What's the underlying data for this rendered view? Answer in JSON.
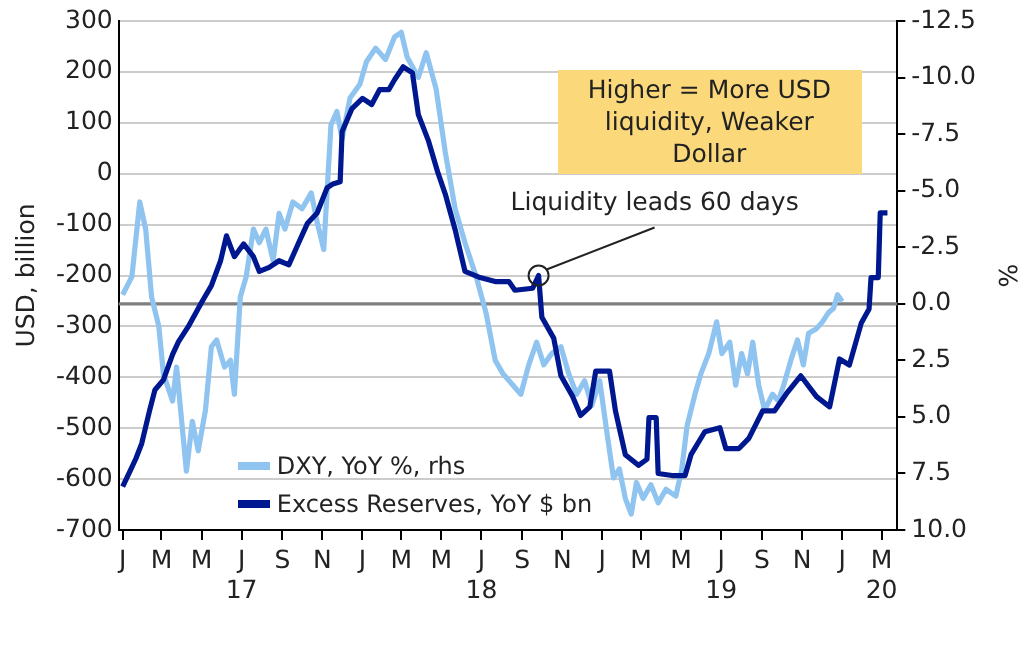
{
  "chart_data": {
    "type": "line",
    "ylabel": "USD, billion",
    "y2label": "%",
    "xlim": [
      "2016-12-26",
      "2020-03-25"
    ],
    "xticks": [
      {
        "value": "2017-01",
        "label": "J"
      },
      {
        "value": "2017-03",
        "label": "M"
      },
      {
        "value": "2017-05",
        "label": "M"
      },
      {
        "value": "2017-07",
        "label": "J\n17"
      },
      {
        "value": "2017-09",
        "label": "S"
      },
      {
        "value": "2017-11",
        "label": "N"
      },
      {
        "value": "2018-01",
        "label": "J"
      },
      {
        "value": "2018-03",
        "label": "M"
      },
      {
        "value": "2018-05",
        "label": "M"
      },
      {
        "value": "2018-07",
        "label": "J\n18"
      },
      {
        "value": "2018-09",
        "label": "S"
      },
      {
        "value": "2018-11",
        "label": "N"
      },
      {
        "value": "2019-01",
        "label": "J"
      },
      {
        "value": "2019-03",
        "label": "M"
      },
      {
        "value": "2019-05",
        "label": "M"
      },
      {
        "value": "2019-07",
        "label": "J\n19"
      },
      {
        "value": "2019-09",
        "label": "S"
      },
      {
        "value": "2019-11",
        "label": "N"
      },
      {
        "value": "2020-01",
        "label": "J"
      },
      {
        "value": "2020-03",
        "label": "M\n20"
      }
    ],
    "ylim": [
      -700,
      300
    ],
    "yticks": [
      -700,
      -600,
      -500,
      -400,
      -300,
      -200,
      -100,
      0,
      100,
      200,
      300
    ],
    "y2lim": [
      10,
      -12.5
    ],
    "y2ticks": [
      {
        "value": 10,
        "label": "10.0"
      },
      {
        "value": 7.5,
        "label": "7.5"
      },
      {
        "value": 5,
        "label": "5.0"
      },
      {
        "value": 2.5,
        "label": "2.5"
      },
      {
        "value": 0,
        "label": "0.0"
      },
      {
        "value": -2.5,
        "label": "-2.5"
      },
      {
        "value": -5,
        "label": "-5.0"
      },
      {
        "value": -7.5,
        "label": "-7.5"
      },
      {
        "value": -10,
        "label": "-10.0"
      },
      {
        "value": -12.5,
        "label": "-12.5"
      }
    ],
    "grid": "y",
    "legend": "bottom left",
    "ref_lines": [
      {
        "axis": "y2",
        "value": 0,
        "color": "#7f7f7f"
      }
    ],
    "annotations": [
      "Higher = More USD liquidity, Weaker Dollar",
      {
        "text": "Liquidity leads 60 days",
        "x": "2018-09-26",
        "y": -200
      }
    ],
    "series": [
      {
        "name": "DXY, YoY %, rhs",
        "color": "#8fc3f0",
        "axis": "y2",
        "x": [
          "2017-01-01",
          "2017-01-15",
          "2017-01-27",
          "2017-02-05",
          "2017-02-14",
          "2017-02-25",
          "2017-03-04",
          "2017-03-18",
          "2017-03-24",
          "2017-04-08",
          "2017-04-17",
          "2017-04-26",
          "2017-05-07",
          "2017-05-16",
          "2017-05-24",
          "2017-06-05",
          "2017-06-14",
          "2017-06-20",
          "2017-06-29",
          "2017-07-08",
          "2017-07-19",
          "2017-07-28",
          "2017-08-07",
          "2017-08-18",
          "2017-08-27",
          "2017-09-05",
          "2017-09-17",
          "2017-10-01",
          "2017-10-15",
          "2017-10-24",
          "2017-11-03",
          "2017-11-14",
          "2017-11-23",
          "2017-12-01",
          "2017-12-13",
          "2017-12-28",
          "2018-01-07",
          "2018-01-21",
          "2018-02-05",
          "2018-02-19",
          "2018-03-01",
          "2018-03-10",
          "2018-03-27",
          "2018-04-08",
          "2018-04-23",
          "2018-05-07",
          "2018-05-22",
          "2018-06-06",
          "2018-06-23",
          "2018-07-08",
          "2018-07-22",
          "2018-08-03",
          "2018-08-18",
          "2018-08-30",
          "2018-09-11",
          "2018-09-23",
          "2018-10-04",
          "2018-10-16",
          "2018-10-30",
          "2018-11-11",
          "2018-11-23",
          "2018-12-05",
          "2018-12-16",
          "2018-12-28",
          "2019-01-09",
          "2019-01-18",
          "2019-01-27",
          "2019-02-05",
          "2019-02-14",
          "2019-02-22",
          "2019-03-04",
          "2019-03-16",
          "2019-03-27",
          "2019-04-08",
          "2019-04-23",
          "2019-05-02",
          "2019-05-10",
          "2019-05-22",
          "2019-05-31",
          "2019-06-12",
          "2019-06-24",
          "2019-07-02",
          "2019-07-14",
          "2019-07-23",
          "2019-08-01",
          "2019-08-10",
          "2019-08-18",
          "2019-08-27",
          "2019-09-05",
          "2019-09-17",
          "2019-09-26",
          "2019-10-04",
          "2019-10-16",
          "2019-10-25",
          "2019-11-03",
          "2019-11-11",
          "2019-11-23",
          "2019-12-02",
          "2019-12-11",
          "2019-12-19",
          "2019-12-25",
          "2020-01-01"
        ],
        "values": [
          -0.4,
          -1.2,
          -4.5,
          -3.3,
          -0.3,
          1.0,
          3.1,
          4.3,
          2.8,
          7.4,
          5.2,
          6.5,
          4.7,
          1.9,
          1.6,
          2.8,
          2.5,
          4.0,
          -0.3,
          -1.2,
          -3.3,
          -2.7,
          -3.3,
          -1.9,
          -4.0,
          -3.3,
          -4.5,
          -4.2,
          -4.9,
          -3.6,
          -2.4,
          -7.9,
          -8.5,
          -7.3,
          -9.1,
          -9.7,
          -10.7,
          -11.3,
          -10.8,
          -11.8,
          -12.0,
          -10.9,
          -10.0,
          -11.1,
          -9.5,
          -6.7,
          -4.2,
          -2.7,
          -1.2,
          0.4,
          2.5,
          3.1,
          3.6,
          4.0,
          2.7,
          1.7,
          2.7,
          2.2,
          1.9,
          3.1,
          4.0,
          3.4,
          4.5,
          3.4,
          5.9,
          7.7,
          7.3,
          8.6,
          9.3,
          7.9,
          8.6,
          8.0,
          8.8,
          8.2,
          8.5,
          7.3,
          5.4,
          4.0,
          3.1,
          2.2,
          0.8,
          2.2,
          1.7,
          3.6,
          2.2,
          3.1,
          1.7,
          3.6,
          4.7,
          4.0,
          4.3,
          3.6,
          2.4,
          1.6,
          2.7,
          1.3,
          1.1,
          0.8,
          0.4,
          0.2,
          -0.4,
          -0.1
        ]
      },
      {
        "name": "Excess Reserves, YoY $ bn",
        "color": "#00188f",
        "x": [
          "2017-01-01",
          "2017-01-12",
          "2017-01-21",
          "2017-01-30",
          "2017-02-11",
          "2017-02-19",
          "2017-03-04",
          "2017-03-18",
          "2017-03-27",
          "2017-04-11",
          "2017-05-01",
          "2017-05-16",
          "2017-05-30",
          "2017-06-08",
          "2017-06-20",
          "2017-07-04",
          "2017-07-19",
          "2017-07-28",
          "2017-08-12",
          "2017-08-27",
          "2017-09-11",
          "2017-09-25",
          "2017-10-09",
          "2017-10-24",
          "2017-11-08",
          "2017-11-17",
          "2017-11-28",
          "2017-12-01",
          "2017-12-16",
          "2018-01-01",
          "2018-01-15",
          "2018-01-27",
          "2018-02-10",
          "2018-02-19",
          "2018-03-04",
          "2018-03-18",
          "2018-03-27",
          "2018-04-11",
          "2018-04-26",
          "2018-05-07",
          "2018-05-22",
          "2018-06-06",
          "2018-06-29",
          "2018-07-22",
          "2018-08-12",
          "2018-08-21",
          "2018-09-17",
          "2018-09-26",
          "2018-10-01",
          "2018-10-19",
          "2018-10-30",
          "2018-11-17",
          "2018-11-29",
          "2018-12-13",
          "2018-12-22",
          "2019-01-12",
          "2019-01-21",
          "2019-02-05",
          "2019-02-25",
          "2019-03-10",
          "2019-03-13",
          "2019-03-24",
          "2019-03-27",
          "2019-04-17",
          "2019-05-07",
          "2019-05-16",
          "2019-06-06",
          "2019-06-29",
          "2019-07-08",
          "2019-07-28",
          "2019-08-12",
          "2019-09-02",
          "2019-09-20",
          "2019-10-10",
          "2019-10-30",
          "2019-11-23",
          "2019-12-13",
          "2019-12-28",
          "2020-01-12",
          "2020-01-30",
          "2020-02-11",
          "2020-02-14",
          "2020-02-25",
          "2020-02-28",
          "2020-03-10"
        ],
        "values": [
          -615,
          -585,
          -560,
          -530,
          -465,
          -425,
          -405,
          -355,
          -330,
          -300,
          -253,
          -220,
          -171,
          -122,
          -163,
          -138,
          -163,
          -192,
          -184,
          -171,
          -179,
          -138,
          -98,
          -77,
          -28,
          -20,
          -16,
          83,
          128,
          148,
          136,
          165,
          165,
          185,
          210,
          198,
          116,
          66,
          1,
          -40,
          -110,
          -192,
          -204,
          -212,
          -212,
          -229,
          -225,
          -200,
          -282,
          -323,
          -397,
          -438,
          -475,
          -458,
          -388,
          -388,
          -466,
          -552,
          -573,
          -561,
          -479,
          -479,
          -589,
          -593,
          -593,
          -552,
          -507,
          -499,
          -540,
          -540,
          -520,
          -466,
          -466,
          -429,
          -397,
          -438,
          -458,
          -364,
          -376,
          -294,
          -266,
          -204,
          -204,
          -77,
          -77
        ]
      }
    ]
  }
}
